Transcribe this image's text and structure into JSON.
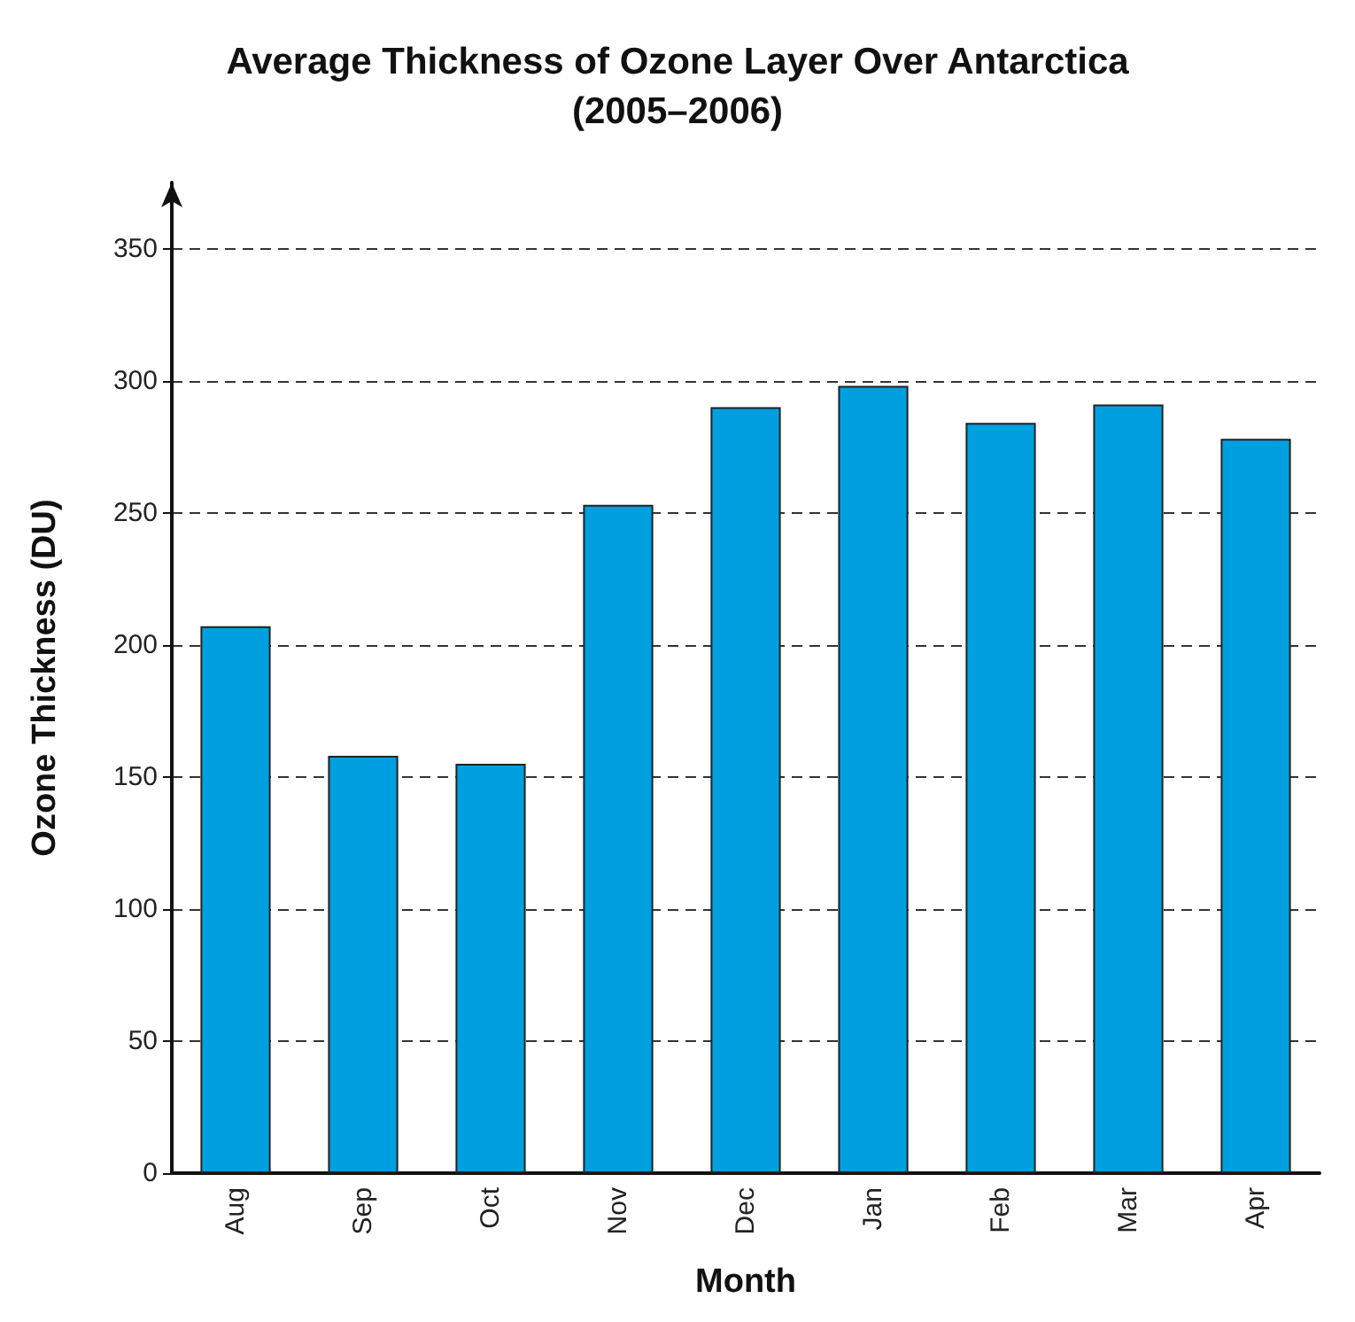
{
  "chart_data": {
    "type": "bar",
    "title": "Average Thickness of Ozone Layer Over Antarctica\n(2005–2006)",
    "xlabel": "Month",
    "ylabel": "Ozone Thickness (DU)",
    "categories": [
      "Aug",
      "Sep",
      "Oct",
      "Nov",
      "Dec",
      "Jan",
      "Feb",
      "Mar",
      "Apr"
    ],
    "values": [
      207,
      158,
      155,
      253,
      290,
      298,
      284,
      291,
      278
    ],
    "color": "#00a0e0",
    "ylim": [
      0,
      375
    ],
    "yticks": [
      0,
      50,
      100,
      150,
      200,
      250,
      300,
      350
    ],
    "grid": "y"
  }
}
